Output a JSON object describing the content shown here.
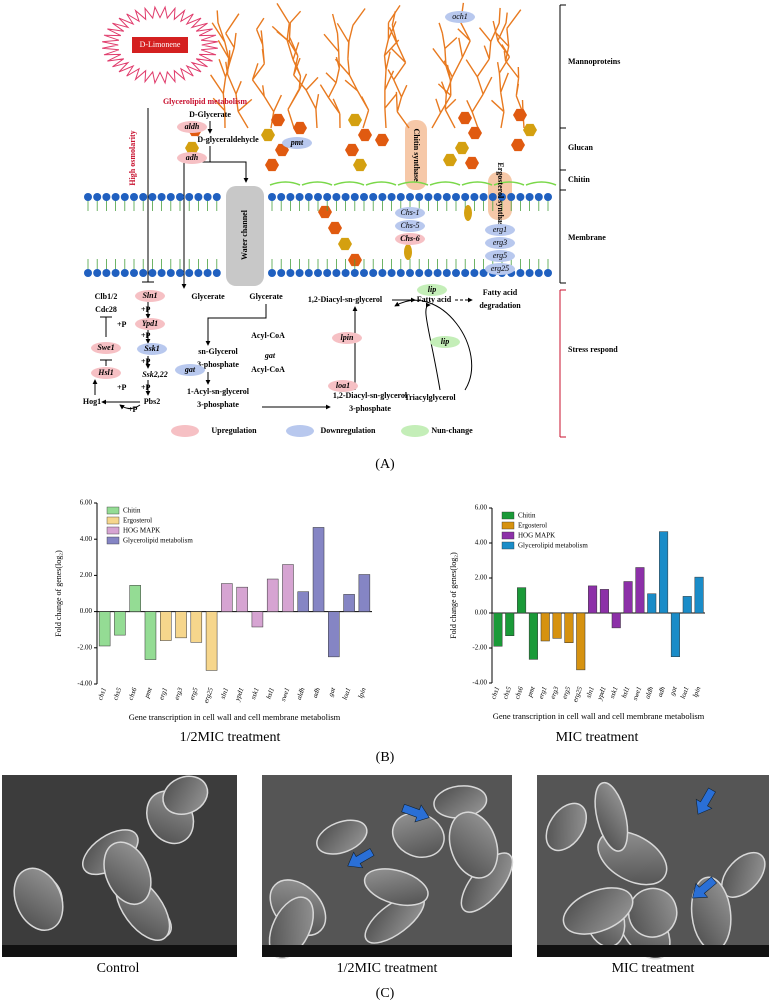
{
  "diagram": {
    "labels": [
      "D-Limonene",
      "Glycerolipid metabolism",
      "D-Glycerate",
      "aldh",
      "D-glyceraldehycle",
      "adh",
      "High osmolarity",
      "Water channel",
      "och1",
      "pmt",
      "Chitin synthase",
      "Ergosterol synthase",
      "Chs-1",
      "Chs-5",
      "Chs-6",
      "erg1",
      "erg3",
      "erg5",
      "erg25",
      "Mannoproteins",
      "Glucan",
      "Chitin",
      "Membrane",
      "Stress respond",
      "Clb1/2",
      "Cdc28",
      "Sln1",
      "+P",
      "Ypd1",
      "+P",
      "Ssk1",
      "+P",
      "Ssk2,22",
      "+P",
      "Pbs2",
      "Hog1",
      "+P",
      "+P",
      "Swe1",
      "+P",
      "Hsl1",
      "Glycerate",
      "Glycerate",
      "Acyl-CoA",
      "sn-Glycerol",
      "3-phosphate",
      "gat",
      "Acyl-CoA",
      "gat",
      "1-Acyl-sn-glycerol",
      "3-phosphate",
      "loa1",
      "1,2-Diacyl-sn-glycerol",
      "3-phosphate",
      "lpin",
      "1,2-Diacyl-sn-glycerol",
      "lip",
      "Fatty acid",
      "Fatty acid",
      "degradation",
      "lip",
      "Triacylglycerol",
      "Upregulation",
      "Downregulation",
      "Nun-change"
    ]
  },
  "panels": [
    "(A)",
    "(B)",
    "(C)"
  ],
  "chart_data": [
    {
      "type": "bar",
      "caption": "1/2MIC treatment",
      "ylabel": "Fold change of genes(log₂)",
      "xlabel": "Gene transcription in cell wall and cell membrane metabolism",
      "categories": [
        "chs1",
        "chs5",
        "chs6",
        "pmt",
        "erg1",
        "erg3",
        "erg5",
        "erg25",
        "sln1",
        "ypd1",
        "ssk1",
        "hsl1",
        "swe1",
        "aldh",
        "adh",
        "gat",
        "loa1",
        "lpin"
      ],
      "series": [
        {
          "name": "Chitin",
          "color": "#94dc94",
          "values": [
            -1.9,
            -1.3,
            1.45,
            -2.65,
            null,
            null,
            null,
            null,
            null,
            null,
            null,
            null,
            null,
            null,
            null,
            null,
            null,
            null
          ]
        },
        {
          "name": "Ergosterol",
          "color": "#f6d68c",
          "values": [
            null,
            null,
            null,
            null,
            -1.6,
            -1.45,
            -1.7,
            -3.25,
            null,
            null,
            null,
            null,
            null,
            null,
            null,
            null,
            null,
            null
          ]
        },
        {
          "name": "HOG MAPK",
          "color": "#d6a4d2",
          "values": [
            null,
            null,
            null,
            null,
            null,
            null,
            null,
            null,
            1.55,
            1.35,
            -0.85,
            1.8,
            2.6,
            null,
            null,
            null,
            null,
            null
          ]
        },
        {
          "name": "Glycerolipid metabolism",
          "color": "#8585c4",
          "values": [
            null,
            null,
            null,
            null,
            null,
            null,
            null,
            null,
            null,
            null,
            null,
            null,
            null,
            1.1,
            4.65,
            -2.5,
            0.95,
            2.05
          ]
        }
      ],
      "ylim": [
        -4,
        6
      ],
      "yticks": [
        {
          "value": -4,
          "label": "-4.00"
        },
        {
          "value": -2,
          "label": "-2.00"
        },
        {
          "value": 0,
          "label": "0.00"
        },
        {
          "value": 2,
          "label": "2.00"
        },
        {
          "value": 4,
          "label": "4.00"
        },
        {
          "value": 6,
          "label": "6.00"
        }
      ],
      "legend": "top-left"
    },
    {
      "type": "bar",
      "caption": "MIC treatment",
      "ylabel": "Fold change of genes(log₂)",
      "xlabel": "Gene transcription in cell wall and cell membrane metabolism",
      "categories": [
        "chs1",
        "chs5",
        "chs6",
        "pmt",
        "erg1",
        "erg3",
        "erg5",
        "erg25",
        "sln1",
        "ypd1",
        "ssk1",
        "hsl1",
        "swe1",
        "aldh",
        "adh",
        "gat",
        "loa1",
        "lpin"
      ],
      "series": [
        {
          "name": "Chitin",
          "color": "#1a9a38",
          "values": [
            -1.9,
            -1.3,
            1.45,
            -2.65,
            null,
            null,
            null,
            null,
            null,
            null,
            null,
            null,
            null,
            null,
            null,
            null,
            null,
            null
          ]
        },
        {
          "name": "Ergosterol",
          "color": "#d69210",
          "values": [
            null,
            null,
            null,
            null,
            -1.6,
            -1.45,
            -1.7,
            -3.25,
            null,
            null,
            null,
            null,
            null,
            null,
            null,
            null,
            null,
            null
          ]
        },
        {
          "name": "HOG MAPK",
          "color": "#8c30a8",
          "values": [
            null,
            null,
            null,
            null,
            null,
            null,
            null,
            null,
            1.55,
            1.35,
            -0.85,
            1.8,
            2.6,
            null,
            null,
            null,
            null,
            null
          ]
        },
        {
          "name": "Glycerolipid metabolism",
          "color": "#1a8cc8",
          "values": [
            null,
            null,
            null,
            null,
            null,
            null,
            null,
            null,
            null,
            null,
            null,
            null,
            null,
            1.1,
            4.65,
            -2.5,
            0.95,
            2.05
          ]
        }
      ],
      "ylim": [
        -4,
        6
      ],
      "yticks": [
        {
          "value": -4,
          "label": "-4.00"
        },
        {
          "value": -2,
          "label": "-2.00"
        },
        {
          "value": 0,
          "label": "0.00"
        },
        {
          "value": 2,
          "label": "2.00"
        },
        {
          "value": 4,
          "label": "4.00"
        },
        {
          "value": 6,
          "label": "6.00"
        }
      ],
      "legend": "top-left"
    }
  ],
  "images": {
    "captions": [
      "Control",
      "1/2MIC treatment",
      "MIC treatment"
    ]
  }
}
